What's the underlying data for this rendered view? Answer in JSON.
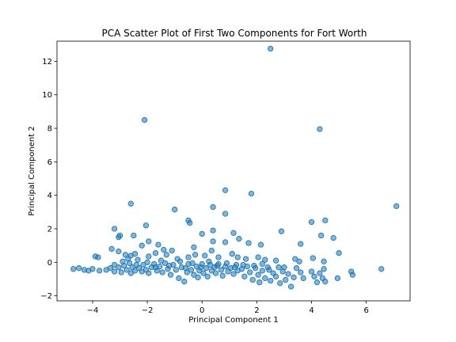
{
  "chart_data": {
    "type": "scatter",
    "title": "PCA Scatter Plot of First Two Components for Fort Worth",
    "xlabel": "Principal Component 1",
    "ylabel": "Principal Component 2",
    "xlim": [
      -5.3,
      7.6
    ],
    "ylim": [
      -2.3,
      13.2
    ],
    "xticks": [
      -4,
      -2,
      0,
      2,
      4,
      6
    ],
    "yticks": [
      -2,
      0,
      2,
      4,
      6,
      8,
      10,
      12
    ],
    "xtick_labels": [
      "−4",
      "−2",
      "0",
      "2",
      "4",
      "6"
    ],
    "ytick_labels": [
      "−2",
      "0",
      "2",
      "4",
      "6",
      "8",
      "10",
      "12"
    ],
    "grid": false,
    "legend": "none",
    "point_color": "#1f77b4",
    "point_alpha": 0.55,
    "series": [
      {
        "points": [
          [
            2.5,
            12.75
          ],
          [
            -2.1,
            8.5
          ],
          [
            4.3,
            7.95
          ],
          [
            7.1,
            3.35
          ],
          [
            0.85,
            4.3
          ],
          [
            1.8,
            4.1
          ],
          [
            -2.6,
            3.5
          ],
          [
            -1.0,
            3.15
          ],
          [
            0.4,
            3.3
          ],
          [
            0.85,
            2.9
          ],
          [
            -0.5,
            2.5
          ],
          [
            -0.45,
            2.35
          ],
          [
            4.0,
            2.4
          ],
          [
            4.5,
            2.5
          ],
          [
            -3.2,
            2.0
          ],
          [
            -2.05,
            2.2
          ],
          [
            0.0,
            1.7
          ],
          [
            0.4,
            1.9
          ],
          [
            1.15,
            1.75
          ],
          [
            1.35,
            1.4
          ],
          [
            2.9,
            1.85
          ],
          [
            4.35,
            1.6
          ],
          [
            4.8,
            1.45
          ],
          [
            -3.0,
            1.6
          ],
          [
            -3.05,
            1.5
          ],
          [
            -2.5,
            1.6
          ],
          [
            -1.95,
            1.25
          ],
          [
            0.4,
            1.25
          ],
          [
            0.85,
            1.2
          ],
          [
            1.7,
            1.15
          ],
          [
            2.15,
            1.05
          ],
          [
            3.6,
            1.1
          ],
          [
            -2.2,
            1.0
          ],
          [
            -1.6,
            1.05
          ],
          [
            -1.4,
            0.75
          ],
          [
            -1.1,
            0.7
          ],
          [
            -0.3,
            0.9
          ],
          [
            0.35,
            0.7
          ],
          [
            1.1,
            0.5
          ],
          [
            2.05,
            0.3
          ],
          [
            4.05,
            0.25
          ],
          [
            5.0,
            0.55
          ],
          [
            -3.9,
            0.35
          ],
          [
            -3.8,
            0.3
          ],
          [
            -3.3,
            0.8
          ],
          [
            -3.05,
            0.65
          ],
          [
            -2.8,
            0.45
          ],
          [
            -2.6,
            0.4
          ],
          [
            -2.45,
            0.5
          ],
          [
            -1.95,
            0.35
          ],
          [
            -1.7,
            0.55
          ],
          [
            -1.3,
            0.45
          ],
          [
            -0.9,
            0.2
          ],
          [
            -0.5,
            0.3
          ],
          [
            -0.25,
            0.45
          ],
          [
            0.1,
            0.4
          ],
          [
            0.6,
            0.3
          ],
          [
            1.3,
            0.3
          ],
          [
            1.6,
            0.2
          ],
          [
            2.3,
            0.15
          ],
          [
            2.7,
            0.1
          ],
          [
            3.4,
            0.2
          ],
          [
            3.55,
            0.05
          ],
          [
            4.45,
            0.05
          ],
          [
            -4.7,
            -0.4
          ],
          [
            -4.5,
            -0.35
          ],
          [
            -4.3,
            -0.45
          ],
          [
            -4.15,
            -0.5
          ],
          [
            -4.0,
            -0.4
          ],
          [
            -3.75,
            -0.5
          ],
          [
            -3.5,
            -0.45
          ],
          [
            -3.35,
            -0.35
          ],
          [
            -3.2,
            -0.55
          ],
          [
            -3.05,
            -0.3
          ],
          [
            -2.95,
            -0.6
          ],
          [
            -2.85,
            -0.2
          ],
          [
            -2.75,
            -0.45
          ],
          [
            -2.65,
            -0.05
          ],
          [
            -2.6,
            -0.65
          ],
          [
            -2.55,
            -0.3
          ],
          [
            -2.45,
            -0.5
          ],
          [
            -2.35,
            0.15
          ],
          [
            -2.3,
            -0.35
          ],
          [
            -2.2,
            -0.55
          ],
          [
            -2.15,
            -0.15
          ],
          [
            -2.05,
            -0.45
          ],
          [
            -1.95,
            -0.65
          ],
          [
            -1.85,
            -0.3
          ],
          [
            -1.75,
            -0.1
          ],
          [
            -1.65,
            -0.5
          ],
          [
            -1.55,
            -0.25
          ],
          [
            -1.45,
            -0.6
          ],
          [
            -1.35,
            -0.05
          ],
          [
            -1.25,
            -0.4
          ],
          [
            -1.15,
            -0.75
          ],
          [
            -1.05,
            -0.15
          ],
          [
            -0.95,
            -0.45
          ],
          [
            -0.85,
            -0.95
          ],
          [
            -0.75,
            -0.3
          ],
          [
            -0.65,
            -1.15
          ],
          [
            -0.55,
            -0.6
          ],
          [
            -0.5,
            -0.1
          ],
          [
            -0.4,
            -0.45
          ],
          [
            -0.3,
            -0.75
          ],
          [
            -0.2,
            -0.25
          ],
          [
            -0.15,
            -0.9
          ],
          [
            -0.1,
            -0.5
          ],
          [
            0.0,
            -0.1
          ],
          [
            0.05,
            -0.65
          ],
          [
            0.15,
            -0.35
          ],
          [
            0.2,
            -0.85
          ],
          [
            0.3,
            -0.15
          ],
          [
            0.35,
            -0.5
          ],
          [
            0.45,
            -0.3
          ],
          [
            0.5,
            -0.65
          ],
          [
            0.6,
            -0.1
          ],
          [
            0.7,
            -0.45
          ],
          [
            0.75,
            -0.8
          ],
          [
            0.85,
            -0.25
          ],
          [
            0.95,
            -0.55
          ],
          [
            1.05,
            -0.35
          ],
          [
            1.15,
            -0.7
          ],
          [
            1.25,
            -0.15
          ],
          [
            1.3,
            -0.5
          ],
          [
            1.45,
            -0.4
          ],
          [
            1.55,
            -0.85
          ],
          [
            1.65,
            -0.25
          ],
          [
            1.75,
            -0.6
          ],
          [
            1.85,
            -1.05
          ],
          [
            1.95,
            -0.35
          ],
          [
            2.05,
            -0.75
          ],
          [
            2.1,
            -1.2
          ],
          [
            2.2,
            -0.5
          ],
          [
            2.3,
            -0.95
          ],
          [
            2.4,
            -0.3
          ],
          [
            2.5,
            -1.1
          ],
          [
            2.6,
            -0.65
          ],
          [
            2.7,
            -0.85
          ],
          [
            2.8,
            -0.3
          ],
          [
            2.85,
            -1.25
          ],
          [
            2.95,
            -0.55
          ],
          [
            3.0,
            -0.3
          ],
          [
            3.05,
            -1.05
          ],
          [
            3.15,
            -0.7
          ],
          [
            3.25,
            -1.45
          ],
          [
            3.35,
            -0.9
          ],
          [
            3.45,
            -0.35
          ],
          [
            3.6,
            -0.6
          ],
          [
            3.7,
            -0.95
          ],
          [
            4.0,
            -0.55
          ],
          [
            4.1,
            -0.85
          ],
          [
            4.2,
            -1.2
          ],
          [
            4.3,
            -0.65
          ],
          [
            4.4,
            -0.95
          ],
          [
            4.45,
            -0.4
          ],
          [
            4.5,
            -1.15
          ],
          [
            4.95,
            -0.95
          ],
          [
            5.45,
            -0.55
          ],
          [
            5.5,
            -0.75
          ],
          [
            6.55,
            -0.4
          ],
          [
            -3.2,
            -0.15
          ],
          [
            -2.9,
            0.05
          ],
          [
            -2.7,
            0.2
          ],
          [
            -2.4,
            -0.15
          ],
          [
            -2.0,
            0.0
          ],
          [
            -1.7,
            -0.3
          ],
          [
            -1.5,
            0.1
          ],
          [
            -1.2,
            -0.2
          ],
          [
            -0.8,
            0.05
          ],
          [
            -0.6,
            -0.35
          ],
          [
            -0.35,
            -0.05
          ],
          [
            -0.05,
            -0.3
          ],
          [
            0.25,
            0.05
          ],
          [
            0.55,
            -0.2
          ],
          [
            0.9,
            -0.05
          ],
          [
            1.2,
            -0.3
          ],
          [
            1.5,
            -0.15
          ],
          [
            1.9,
            -0.2
          ],
          [
            2.2,
            -0.1
          ],
          [
            2.45,
            -0.45
          ]
        ]
      }
    ]
  }
}
